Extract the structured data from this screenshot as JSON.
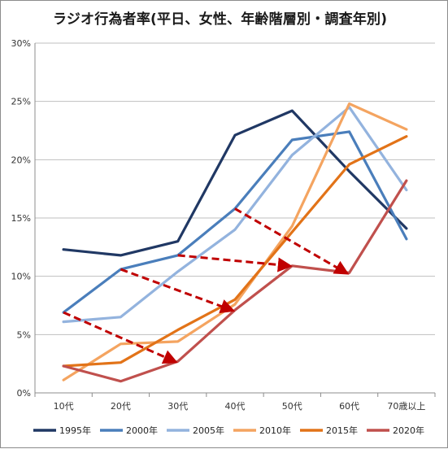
{
  "chart_data": {
    "type": "line",
    "title": "ラジオ行為者率(平日、女性、年齢階層別・調査年別)",
    "categories": [
      "10代",
      "20代",
      "30代",
      "40代",
      "50代",
      "60代",
      "70歳以上"
    ],
    "y_ticks": [
      "0%",
      "5%",
      "10%",
      "15%",
      "20%",
      "25%",
      "30%"
    ],
    "ylim": [
      0,
      30
    ],
    "grid": true,
    "legend_position": "bottom",
    "series": [
      {
        "name": "1995年",
        "color": "#203864",
        "values": [
          12.3,
          11.8,
          13.0,
          22.1,
          24.2,
          19.0,
          14.1
        ]
      },
      {
        "name": "2000年",
        "color": "#4a7ebb",
        "values": [
          6.9,
          10.6,
          11.8,
          15.8,
          21.7,
          22.4,
          13.2
        ]
      },
      {
        "name": "2005年",
        "color": "#93b3de",
        "values": [
          6.1,
          6.5,
          10.4,
          14.0,
          20.4,
          24.5,
          17.4
        ]
      },
      {
        "name": "2010年",
        "color": "#f4a460",
        "values": [
          1.1,
          4.2,
          4.4,
          7.6,
          14.3,
          24.8,
          22.6
        ]
      },
      {
        "name": "2015年",
        "color": "#e27318",
        "values": [
          2.3,
          2.6,
          5.4,
          8.0,
          13.8,
          19.6,
          22.0
        ]
      },
      {
        "name": "2020年",
        "color": "#c0504d",
        "values": [
          2.3,
          1.0,
          2.7,
          7.1,
          10.9,
          10.3,
          18.2
        ]
      }
    ],
    "arrows": [
      {
        "color": "#c00000",
        "from": {
          "category": "10代",
          "value": 6.9
        },
        "to": {
          "category": "30代",
          "value": 2.7
        }
      },
      {
        "color": "#c00000",
        "from": {
          "category": "20代",
          "value": 10.6
        },
        "to": {
          "category": "40代",
          "value": 7.1
        }
      },
      {
        "color": "#c00000",
        "from": {
          "category": "30代",
          "value": 11.8
        },
        "to": {
          "category": "50代",
          "value": 10.9
        }
      },
      {
        "color": "#c00000",
        "from": {
          "category": "40代",
          "value": 15.8
        },
        "to": {
          "category": "60代",
          "value": 10.3
        }
      }
    ]
  }
}
